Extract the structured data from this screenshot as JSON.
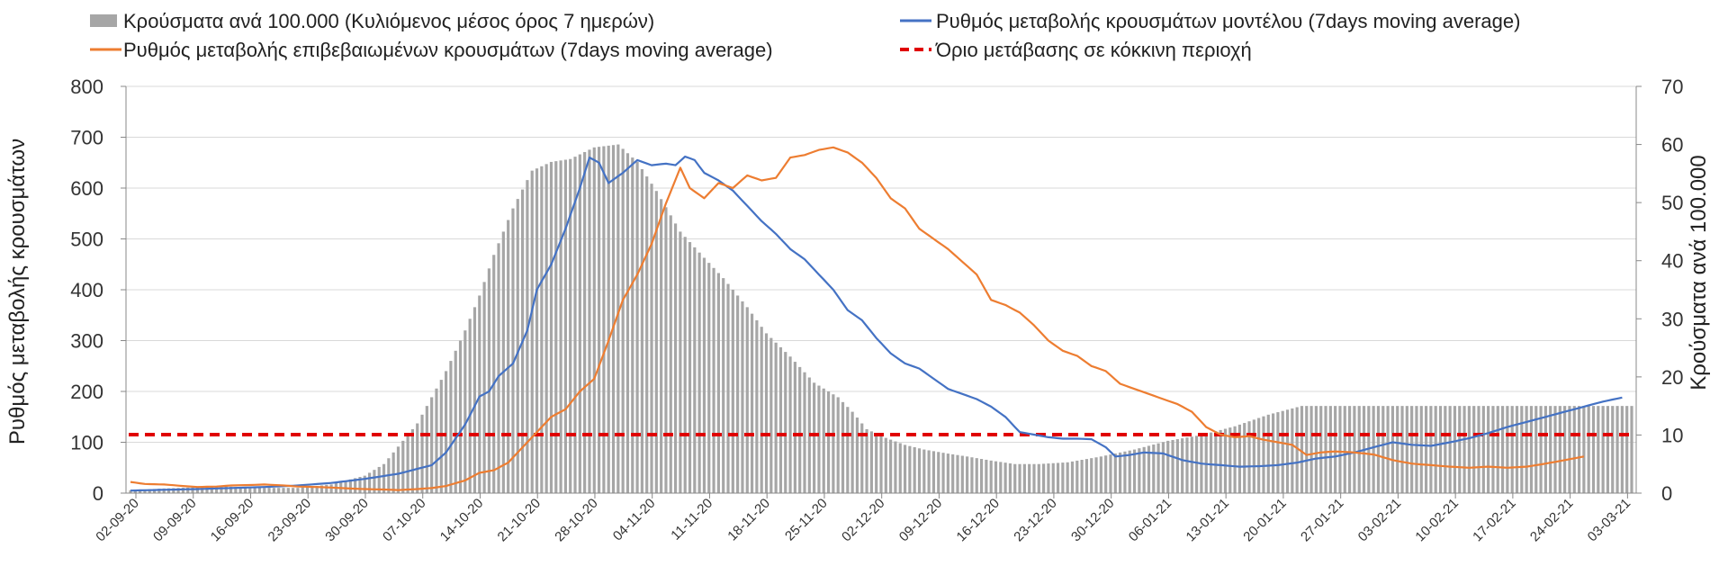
{
  "chart_data": {
    "type": "bar+line",
    "title": "",
    "ylabel_left": "Ρυθμός μεταβολής κρουσμάτων",
    "ylabel_right": "Κρούσματα ανά 100.000",
    "ylim_left": [
      0,
      800
    ],
    "ylim_right": [
      0,
      70
    ],
    "yticks_left": [
      "0",
      "100",
      "200",
      "300",
      "400",
      "500",
      "600",
      "700",
      "800"
    ],
    "yticks_right": [
      "0",
      "10",
      "20",
      "30",
      "40",
      "50",
      "60",
      "70"
    ],
    "x_tick_labels": [
      "02-09-20",
      "09-09-20",
      "16-09-20",
      "23-09-20",
      "30-09-20",
      "07-10-20",
      "14-10-20",
      "21-10-20",
      "28-10-20",
      "04-11-20",
      "11-11-20",
      "18-11-20",
      "25-11-20",
      "02-12-20",
      "09-12-20",
      "16-12-20",
      "23-12-20",
      "30-12-20",
      "06-01-21",
      "13-01-21",
      "20-01-21",
      "27-01-21",
      "03-02-21",
      "10-02-21",
      "17-02-21",
      "24-02-21",
      "03-03-21"
    ],
    "legend": {
      "bars": "Κρούσματα ανά 100.000 (Κυλιόμενος μέσος όρος 7 ημερών)",
      "model": "Ρυθμός μεταβολής κρουσμάτων μοντέλου (7days moving average)",
      "confirmed": "Ρυθμός μεταβολής επιβεβαιωμένων κρουσμάτων (7days moving average)",
      "threshold": "Όριο μετάβασης σε κόκκινη περιοχή"
    },
    "colors": {
      "bars": "#a6a6a6",
      "model": "#4472c4",
      "confirmed": "#ed7d31",
      "threshold": "#e00000",
      "grid": "#d9d9d9"
    },
    "threshold_value": 115,
    "bar_series": {
      "name": "Κρούσματα ανά 100.000",
      "axis": "right",
      "keyframes": [
        [
          0,
          0.5
        ],
        [
          7,
          0.8
        ],
        [
          14,
          1.0
        ],
        [
          21,
          1.1
        ],
        [
          28,
          0.9
        ],
        [
          35,
          0.9
        ],
        [
          42,
          1.5
        ],
        [
          49,
          3.0
        ],
        [
          53,
          5.0
        ],
        [
          56,
          8.0
        ],
        [
          60,
          12.0
        ],
        [
          63,
          16.5
        ],
        [
          66,
          21.0
        ],
        [
          70,
          28.0
        ],
        [
          73,
          34.0
        ],
        [
          76,
          41.0
        ],
        [
          80,
          49.0
        ],
        [
          84,
          55.5
        ],
        [
          88,
          57.0
        ],
        [
          92,
          57.5
        ],
        [
          97,
          59.5
        ],
        [
          102,
          60.0
        ],
        [
          106,
          57.0
        ],
        [
          110,
          52.0
        ],
        [
          115,
          45.0
        ],
        [
          120,
          40.5
        ],
        [
          124,
          37.0
        ],
        [
          129,
          32.0
        ],
        [
          133,
          27.5
        ],
        [
          138,
          23.5
        ],
        [
          143,
          19.0
        ],
        [
          148,
          16.5
        ],
        [
          151,
          14.0
        ],
        [
          154,
          11.0
        ],
        [
          158,
          9.5
        ],
        [
          162,
          8.3
        ],
        [
          166,
          7.5
        ],
        [
          171,
          6.8
        ],
        [
          175,
          6.3
        ],
        [
          180,
          5.6
        ],
        [
          185,
          5.0
        ],
        [
          190,
          5.0
        ],
        [
          196,
          5.3
        ],
        [
          203,
          6.3
        ],
        [
          210,
          7.5
        ],
        [
          217,
          9.0
        ],
        [
          224,
          10.0
        ],
        [
          231,
          11.5
        ],
        [
          238,
          13.5
        ],
        [
          245,
          15.0
        ]
      ]
    },
    "model_series": {
      "name": "Ρυθμός μεταβολής κρουσμάτων μοντέλου (7days moving average)",
      "axis": "left",
      "keyframes": [
        [
          0,
          5
        ],
        [
          14,
          8
        ],
        [
          28,
          12
        ],
        [
          35,
          15
        ],
        [
          42,
          20
        ],
        [
          49,
          28
        ],
        [
          56,
          38
        ],
        [
          63,
          55
        ],
        [
          66,
          80
        ],
        [
          70,
          135
        ],
        [
          73,
          190
        ],
        [
          75,
          200
        ],
        [
          77,
          230
        ],
        [
          80,
          255
        ],
        [
          83,
          320
        ],
        [
          85,
          400
        ],
        [
          88,
          450
        ],
        [
          91,
          520
        ],
        [
          94,
          600
        ],
        [
          96,
          660
        ],
        [
          98,
          650
        ],
        [
          100,
          610
        ],
        [
          103,
          630
        ],
        [
          106,
          655
        ],
        [
          109,
          645
        ],
        [
          112,
          648
        ],
        [
          114,
          645
        ],
        [
          116,
          662
        ],
        [
          118,
          655
        ],
        [
          120,
          630
        ],
        [
          123,
          615
        ],
        [
          126,
          595
        ],
        [
          129,
          565
        ],
        [
          132,
          535
        ],
        [
          135,
          510
        ],
        [
          138,
          480
        ],
        [
          141,
          460
        ],
        [
          144,
          430
        ],
        [
          147,
          400
        ],
        [
          150,
          360
        ],
        [
          153,
          340
        ],
        [
          156,
          305
        ],
        [
          159,
          275
        ],
        [
          162,
          255
        ],
        [
          165,
          245
        ],
        [
          168,
          225
        ],
        [
          171,
          205
        ],
        [
          174,
          195
        ],
        [
          177,
          185
        ],
        [
          180,
          170
        ],
        [
          183,
          150
        ],
        [
          186,
          120
        ],
        [
          189,
          115
        ],
        [
          192,
          110
        ],
        [
          195,
          107
        ],
        [
          198,
          107
        ],
        [
          201,
          106
        ],
        [
          204,
          90
        ],
        [
          206,
          72
        ],
        [
          209,
          75
        ],
        [
          212,
          80
        ],
        [
          216,
          78
        ],
        [
          220,
          65
        ],
        [
          224,
          58
        ],
        [
          228,
          55
        ],
        [
          232,
          52
        ],
        [
          236,
          53
        ],
        [
          240,
          55
        ],
        [
          244,
          60
        ],
        [
          248,
          68
        ],
        [
          252,
          72
        ],
        [
          256,
          80
        ],
        [
          260,
          90
        ],
        [
          264,
          100
        ],
        [
          268,
          95
        ],
        [
          272,
          93
        ],
        [
          276,
          100
        ],
        [
          280,
          108
        ],
        [
          284,
          118
        ],
        [
          288,
          130
        ],
        [
          292,
          140
        ],
        [
          296,
          150
        ],
        [
          300,
          160
        ],
        [
          304,
          170
        ],
        [
          308,
          180
        ],
        [
          312,
          188
        ]
      ]
    },
    "confirmed_series": {
      "name": "Ρυθμός μεταβολής επιβεβαιωμένων κρουσμάτων (7days moving average)",
      "axis": "left",
      "keyframes": [
        [
          0,
          22
        ],
        [
          3,
          18
        ],
        [
          7,
          17
        ],
        [
          11,
          14
        ],
        [
          14,
          12
        ],
        [
          18,
          13
        ],
        [
          21,
          15
        ],
        [
          25,
          16
        ],
        [
          28,
          17
        ],
        [
          32,
          15
        ],
        [
          35,
          13
        ],
        [
          39,
          12
        ],
        [
          42,
          11
        ],
        [
          46,
          9
        ],
        [
          49,
          8
        ],
        [
          53,
          7
        ],
        [
          56,
          6
        ],
        [
          60,
          8
        ],
        [
          63,
          10
        ],
        [
          66,
          14
        ],
        [
          70,
          25
        ],
        [
          73,
          40
        ],
        [
          76,
          45
        ],
        [
          79,
          60
        ],
        [
          82,
          90
        ],
        [
          85,
          120
        ],
        [
          88,
          150
        ],
        [
          91,
          165
        ],
        [
          94,
          200
        ],
        [
          97,
          225
        ],
        [
          100,
          300
        ],
        [
          103,
          380
        ],
        [
          106,
          430
        ],
        [
          109,
          490
        ],
        [
          112,
          570
        ],
        [
          115,
          640
        ],
        [
          117,
          600
        ],
        [
          120,
          580
        ],
        [
          123,
          610
        ],
        [
          126,
          600
        ],
        [
          129,
          625
        ],
        [
          132,
          615
        ],
        [
          135,
          620
        ],
        [
          138,
          660
        ],
        [
          141,
          665
        ],
        [
          144,
          675
        ],
        [
          147,
          680
        ],
        [
          150,
          670
        ],
        [
          153,
          650
        ],
        [
          156,
          620
        ],
        [
          159,
          580
        ],
        [
          162,
          560
        ],
        [
          165,
          520
        ],
        [
          168,
          500
        ],
        [
          171,
          480
        ],
        [
          174,
          455
        ],
        [
          177,
          430
        ],
        [
          180,
          380
        ],
        [
          183,
          370
        ],
        [
          186,
          355
        ],
        [
          189,
          330
        ],
        [
          192,
          300
        ],
        [
          195,
          280
        ],
        [
          198,
          270
        ],
        [
          201,
          250
        ],
        [
          204,
          240
        ],
        [
          207,
          215
        ],
        [
          210,
          205
        ],
        [
          213,
          195
        ],
        [
          216,
          185
        ],
        [
          219,
          175
        ],
        [
          222,
          160
        ],
        [
          225,
          130
        ],
        [
          228,
          115
        ],
        [
          231,
          110
        ],
        [
          234,
          112
        ],
        [
          237,
          105
        ],
        [
          240,
          100
        ],
        [
          243,
          95
        ],
        [
          246,
          75
        ],
        [
          249,
          80
        ],
        [
          252,
          82
        ],
        [
          256,
          80
        ],
        [
          260,
          76
        ],
        [
          264,
          65
        ],
        [
          268,
          58
        ],
        [
          272,
          55
        ],
        [
          276,
          52
        ],
        [
          280,
          50
        ],
        [
          284,
          52
        ],
        [
          288,
          50
        ],
        [
          292,
          52
        ],
        [
          296,
          58
        ],
        [
          300,
          65
        ],
        [
          304,
          72
        ]
      ]
    }
  }
}
